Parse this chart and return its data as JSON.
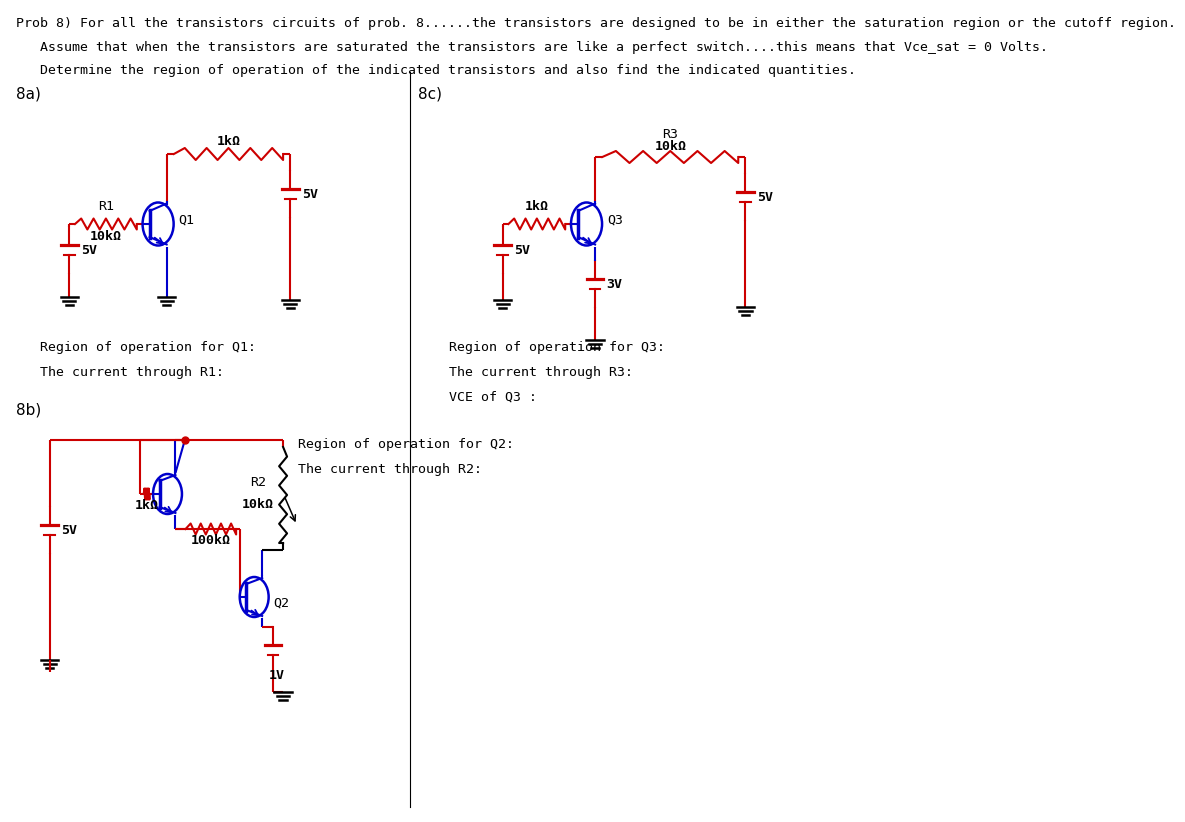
{
  "title_line1": "Prob 8) For all the transistors circuits of prob. 8......the transistors are designed to be in either the saturation region or the cutoff region.",
  "title_line2": "Assume that when the transistors are saturated the transistors are like a perfect switch....this means that Vce_sat = 0 Volts.",
  "title_line3": "Determine the region of operation of the indicated transistors and also find the indicated quantities.",
  "label_8a": "8a)",
  "label_8b": "8b)",
  "label_8c": "8c)",
  "text_region_q1": "Region of operation for Q1:",
  "text_current_r1": "The current through R1:",
  "text_region_q2": "Region of operation for Q2:",
  "text_current_r2": "The current through R2:",
  "text_region_q3": "Region of operation for Q3:",
  "text_current_r3": "The current through R3:",
  "text_vce_q3": "VCE of Q3 :",
  "red": "#cc0000",
  "blue": "#0000cc",
  "black": "#000000",
  "bg": "#ffffff"
}
